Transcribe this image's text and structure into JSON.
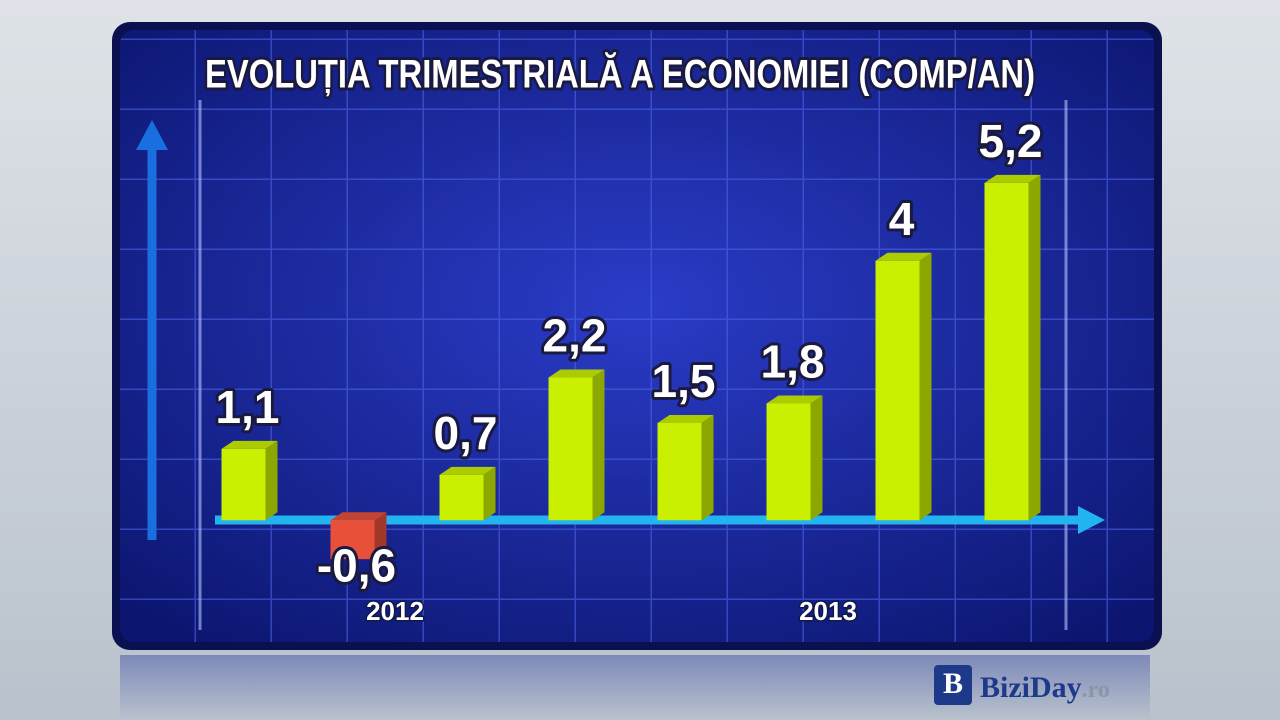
{
  "chart_data": {
    "type": "bar",
    "title": "EVOLUȚIA TRIMESTRIALĂ A ECONOMIEI (COMP/AN)",
    "categories": [
      null,
      null,
      null,
      null,
      null,
      null,
      null,
      null
    ],
    "values": [
      1.1,
      -0.6,
      0.7,
      2.2,
      1.5,
      1.8,
      4,
      5.2
    ],
    "value_labels": [
      "1,1",
      "-0,6",
      "0,7",
      "2,2",
      "1,5",
      "1,8",
      "4",
      "5,2"
    ],
    "year_labels": [
      "2012",
      "2013"
    ],
    "color": "#c8f000",
    "negative_color": "#e8503a",
    "ylim": [
      -2,
      6
    ]
  },
  "watermark": {
    "logo": "B",
    "name": "BiziDay",
    "suffix": ".ro"
  }
}
